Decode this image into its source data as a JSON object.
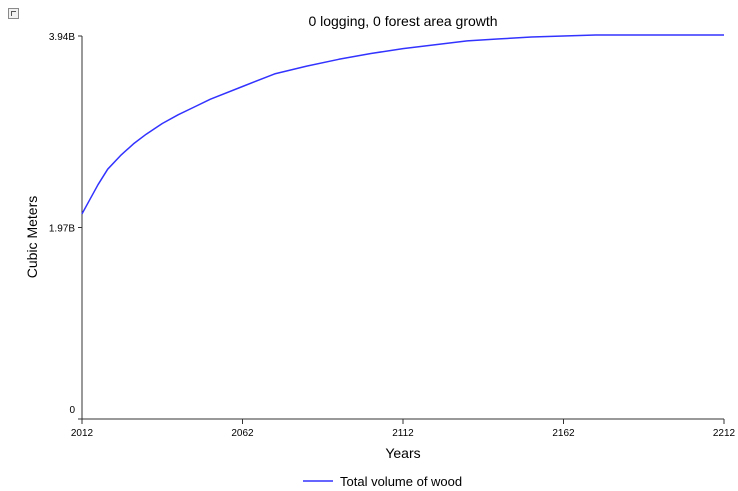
{
  "chart_data": {
    "type": "line",
    "title": "0 logging, 0 forest area growth",
    "xlabel": "Years",
    "ylabel": "Cubic Meters",
    "xlim": [
      2012,
      2212
    ],
    "ylim": [
      0,
      3.94
    ],
    "x_ticks": [
      "2012",
      "2062",
      "2112",
      "2162",
      "2212"
    ],
    "y_ticks": [
      "0",
      "1.97B",
      "3.94B"
    ],
    "legend_position": "bottom",
    "grid": false,
    "series": [
      {
        "name": "Total volume of wood",
        "color": "#3333ff",
        "x": [
          2012,
          2014,
          2017,
          2020,
          2024,
          2028,
          2032,
          2037,
          2042,
          2047,
          2052,
          2062,
          2072,
          2082,
          2092,
          2102,
          2112,
          2122,
          2132,
          2142,
          2152,
          2162,
          2172,
          2182,
          2192,
          2202,
          2212
        ],
        "values": [
          2.11,
          2.23,
          2.41,
          2.57,
          2.71,
          2.83,
          2.93,
          3.04,
          3.13,
          3.21,
          3.29,
          3.42,
          3.55,
          3.63,
          3.7,
          3.76,
          3.81,
          3.85,
          3.89,
          3.91,
          3.93,
          3.94,
          3.95,
          3.95,
          3.95,
          3.95,
          3.95
        ]
      }
    ]
  }
}
